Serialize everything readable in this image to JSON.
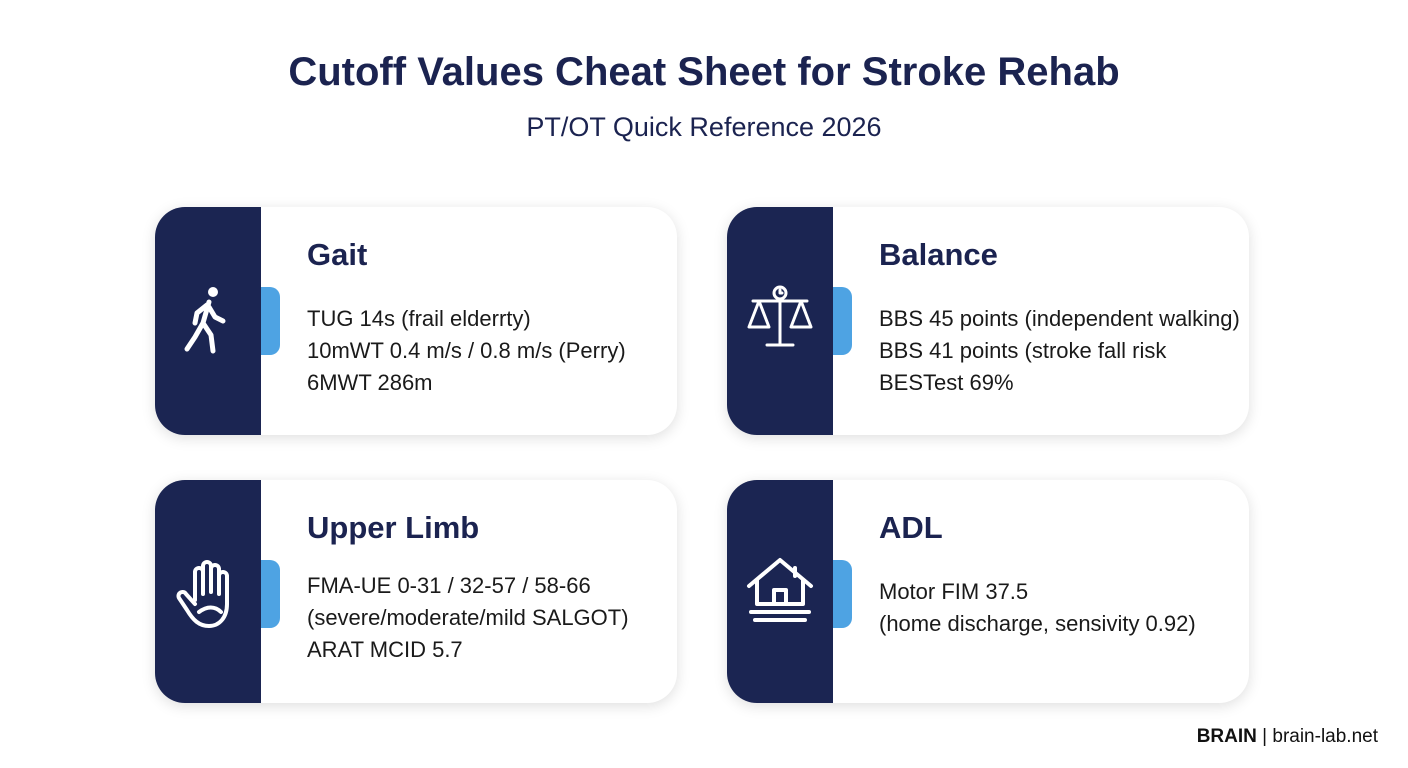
{
  "header": {
    "title": "Cutoff Values Cheat Sheet for Stroke Rehab",
    "subtitle": "PT/OT Quick Reference 2026"
  },
  "cards": [
    {
      "title": "Gait",
      "lines": [
        "TUG 14s (frail elderrty)",
        "10mWT 0.4 m/s / 0.8 m/s (Perry)",
        "6MWT 286m"
      ]
    },
    {
      "title": "Balance",
      "lines": [
        "BBS 45 points (independent walking)",
        "BBS 41 points (stroke fall risk",
        "BESTest 69%"
      ]
    },
    {
      "title": "Upper Limb",
      "lines": [
        "FMA-UE 0-31 / 32-57 / 58-66",
        "(severe/moderate/mild SALGOT)",
        "ARAT MCID 5.7"
      ]
    },
    {
      "title": "ADL",
      "lines": [
        "Motor FIM 37.5",
        "(home discharge, sensivity 0.92)"
      ]
    }
  ],
  "footer": {
    "brand": "BRAIN",
    "separator": "|",
    "site": "brain-lab.net"
  }
}
